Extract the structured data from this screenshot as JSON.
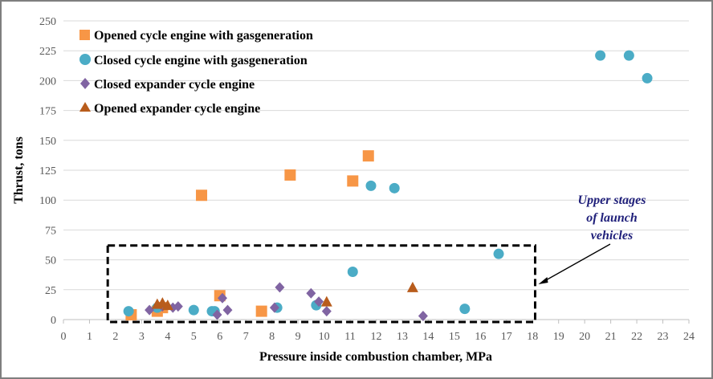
{
  "chart_data": {
    "type": "scatter",
    "title": "",
    "xlabel": "Pressure inside combustion chamber, MPa",
    "ylabel": "Thrust, tons",
    "xlim": [
      0,
      24
    ],
    "ylim": [
      0,
      250
    ],
    "x_ticks": [
      0,
      1,
      2,
      3,
      4,
      5,
      6,
      7,
      8,
      9,
      10,
      11,
      12,
      13,
      14,
      15,
      16,
      17,
      18,
      19,
      20,
      21,
      22,
      23,
      24
    ],
    "y_ticks": [
      0,
      25,
      50,
      75,
      100,
      125,
      150,
      175,
      200,
      225,
      250
    ],
    "legend_position": "top-left",
    "series": [
      {
        "name": "Opened cycle engine with gasgeneration",
        "marker": "square",
        "color": "#f79646",
        "points": [
          [
            2.6,
            4
          ],
          [
            3.6,
            7
          ],
          [
            3.8,
            10
          ],
          [
            5.3,
            104
          ],
          [
            6.0,
            20
          ],
          [
            7.6,
            7
          ],
          [
            8.7,
            121
          ],
          [
            11.1,
            116
          ],
          [
            11.7,
            137
          ]
        ]
      },
      {
        "name": "Closed cycle engine with gasgeneration",
        "marker": "circle",
        "color": "#4bacc6",
        "points": [
          [
            2.5,
            7
          ],
          [
            3.6,
            10
          ],
          [
            5.0,
            8
          ],
          [
            5.7,
            7
          ],
          [
            5.8,
            7
          ],
          [
            8.2,
            10
          ],
          [
            9.7,
            12
          ],
          [
            11.1,
            40
          ],
          [
            11.8,
            112
          ],
          [
            12.7,
            110
          ],
          [
            15.4,
            9
          ],
          [
            16.7,
            55
          ],
          [
            20.6,
            221
          ],
          [
            21.7,
            221
          ],
          [
            22.4,
            202
          ]
        ]
      },
      {
        "name": "Closed expander cycle engine",
        "marker": "diamond",
        "color": "#8064a2",
        "points": [
          [
            3.3,
            8
          ],
          [
            3.8,
            11
          ],
          [
            4.2,
            10
          ],
          [
            4.4,
            11
          ],
          [
            5.9,
            4
          ],
          [
            6.1,
            18
          ],
          [
            6.3,
            8
          ],
          [
            8.1,
            10
          ],
          [
            8.3,
            27
          ],
          [
            9.5,
            22
          ],
          [
            9.8,
            15
          ],
          [
            10.1,
            7
          ],
          [
            13.8,
            3
          ]
        ]
      },
      {
        "name": "Opened expander cycle engine",
        "marker": "triangle",
        "color": "#c0504d",
        "fill": "#b85c1c",
        "points": [
          [
            3.6,
            13
          ],
          [
            3.8,
            14
          ],
          [
            4.0,
            12
          ],
          [
            10.1,
            15
          ],
          [
            13.4,
            27
          ]
        ]
      }
    ],
    "annotations": [
      {
        "text_lines": [
          "Upper stages",
          "of launch",
          "vehicles"
        ],
        "region_x": [
          1.7,
          18.1
        ],
        "region_y": [
          0,
          62
        ]
      }
    ]
  }
}
